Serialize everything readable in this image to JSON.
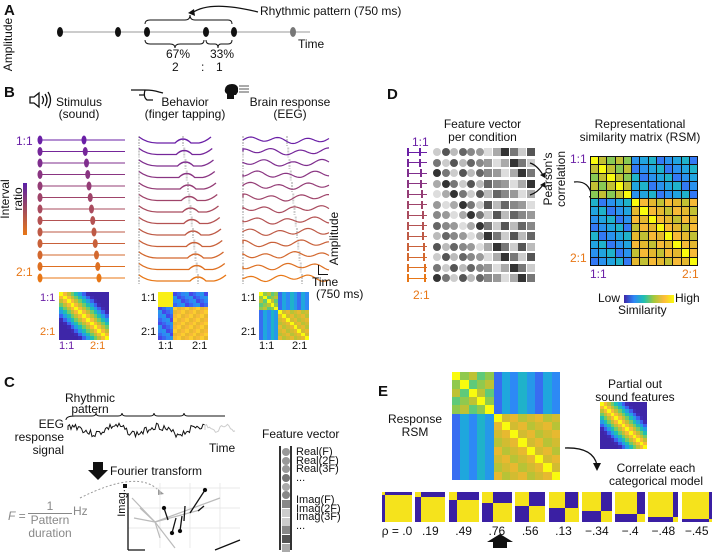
{
  "panels": {
    "A": {
      "label": "A",
      "ylabel": "Amplitude",
      "xlabel": "Time",
      "annotation": "Rhythmic pattern (750 ms)",
      "pct_left": "67%",
      "pct_right": "33%",
      "ratio_left": "2",
      "ratio_sep": ":",
      "ratio_right": "1"
    },
    "B": {
      "label": "B",
      "col1_title": "Stimulus",
      "col1_sub": "(sound)",
      "col2_title": "Behavior",
      "col2_sub": "(finger tapping)",
      "col3_title": "Brain response",
      "col3_sub": "(EEG)",
      "top_ratio": "1:1",
      "bottom_ratio": "2:1",
      "colorbar_label_1": "Interval",
      "colorbar_label_2": "ratio",
      "scale_amp": "Amplitude",
      "scale_time": "Time",
      "scale_time_sub": "(750 ms)",
      "matrix_top": "1:1",
      "matrix_bottom": "2:1",
      "matrix_x_left": "1:1",
      "matrix_x_right": "2:1",
      "rows": 13
    },
    "C": {
      "label": "C",
      "pattern_label_1": "Rhythmic",
      "pattern_label_2": "pattern",
      "eeg_label_1": "EEG",
      "eeg_label_2": "response",
      "eeg_label_3": "signal",
      "time_label": "Time",
      "fourier_label": "Fourier transform",
      "formula_F": "F =",
      "formula_num": "1",
      "formula_den_1": "Pattern",
      "formula_den_2": "duration",
      "formula_unit": "Hz",
      "imag_axis": "Imag.",
      "feature_title": "Feature vector",
      "features": [
        "Real(F)",
        "Real(2F)",
        "Real(3F)",
        "...",
        "Imag(F)",
        "Imag(2F)",
        "Imag(3F)",
        "..."
      ]
    },
    "D": {
      "label": "D",
      "fv_title_1": "Feature vector",
      "fv_title_2": "per condition",
      "top_ratio": "1:1",
      "bottom_ratio": "2:1",
      "pearson_1": "Pearson's",
      "pearson_2": "correlation",
      "rsm_title_1": "Representational",
      "rsm_title_2": "similarity matrix (RSM)",
      "rsm_top": "1:1",
      "rsm_bottom": "2:1",
      "rsm_x_left": "1:1",
      "rsm_x_right": "2:1",
      "legend_low": "Low",
      "legend_high": "High",
      "legend_title": "Similarity"
    },
    "E": {
      "label": "E",
      "response_1": "Response",
      "response_2": "RSM",
      "partial_1": "Partial out",
      "partial_2": "sound features",
      "correlate_1": "Correlate each",
      "correlate_2": "categorical model",
      "models": [
        {
          "rho": "ρ = .0",
          "split": 1
        },
        {
          "rho": ".19",
          "split": 2
        },
        {
          "rho": ".49",
          "split": 3
        },
        {
          "rho": ".76",
          "split": 4
        },
        {
          "rho": ".56",
          "split": 5
        },
        {
          "rho": ".13",
          "split": 6
        },
        {
          "rho": "−.34",
          "split": 7
        },
        {
          "rho": "−.4",
          "split": 8
        },
        {
          "rho": "−.48",
          "split": 9
        },
        {
          "rho": "−.45",
          "split": 10
        }
      ],
      "highlighted_index": 3
    }
  },
  "colors": {
    "purple": "#6a1fa6",
    "orange": "#e87716",
    "model_blue": "#3a1fa3",
    "model_yellow": "#f5e31c"
  }
}
